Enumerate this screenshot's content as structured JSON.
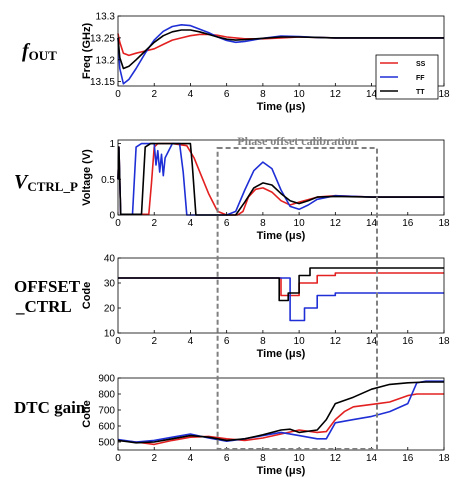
{
  "colors": {
    "SS": "#e32020",
    "FF": "#1f2fd6",
    "TT": "#000000",
    "callout": "#808080"
  },
  "callout": {
    "text": "Phase offset calibration",
    "x_range": [
      5.5,
      14.3
    ]
  },
  "chart_data": [
    {
      "type": "line",
      "row_label": {
        "main": "f",
        "sub": "OUT"
      },
      "xlabel": "Time (μs)",
      "ylabel": "Freq (GHz)",
      "xlim": [
        0,
        18
      ],
      "ylim": [
        13.14,
        13.3
      ],
      "xticks": [
        0,
        2,
        4,
        6,
        8,
        10,
        12,
        14,
        16,
        18
      ],
      "yticks": [
        13.15,
        13.2,
        13.25,
        13.3
      ],
      "ytick_labels": [
        "13.15",
        "13.2",
        "13.25",
        "13.3"
      ],
      "grid": false,
      "legend": "right",
      "series": [
        {
          "name": "SS",
          "color_key": "SS",
          "x": [
            0,
            0.1,
            0.3,
            0.6,
            1,
            1.5,
            2,
            2.5,
            3,
            3.5,
            4,
            4.5,
            5,
            5.5,
            6,
            6.5,
            7,
            8,
            9,
            10,
            11,
            12,
            14,
            16,
            18
          ],
          "y": [
            13.26,
            13.24,
            13.215,
            13.21,
            13.215,
            13.22,
            13.225,
            13.235,
            13.245,
            13.25,
            13.255,
            13.258,
            13.258,
            13.256,
            13.252,
            13.25,
            13.248,
            13.248,
            13.25,
            13.252,
            13.251,
            13.25,
            13.25,
            13.25,
            13.25
          ]
        },
        {
          "name": "FF",
          "color_key": "FF",
          "x": [
            0,
            0.1,
            0.3,
            0.6,
            1,
            1.5,
            2,
            2.5,
            3,
            3.5,
            4,
            4.5,
            5,
            5.5,
            6,
            6.5,
            7,
            8,
            9,
            10,
            11,
            12,
            14,
            16,
            18
          ],
          "y": [
            13.25,
            13.18,
            13.145,
            13.155,
            13.18,
            13.215,
            13.245,
            13.265,
            13.276,
            13.28,
            13.278,
            13.27,
            13.262,
            13.252,
            13.244,
            13.24,
            13.242,
            13.249,
            13.254,
            13.253,
            13.251,
            13.25,
            13.25,
            13.25,
            13.25
          ]
        },
        {
          "name": "TT",
          "color_key": "TT",
          "x": [
            0,
            0.1,
            0.3,
            0.6,
            1,
            1.5,
            2,
            2.5,
            3,
            3.5,
            4,
            4.5,
            5,
            5.5,
            6,
            6.5,
            7,
            8,
            9,
            10,
            11,
            12,
            14,
            16,
            18
          ],
          "y": [
            13.25,
            13.205,
            13.18,
            13.185,
            13.2,
            13.22,
            13.24,
            13.255,
            13.264,
            13.268,
            13.268,
            13.264,
            13.258,
            13.252,
            13.247,
            13.245,
            13.246,
            13.249,
            13.252,
            13.252,
            13.251,
            13.25,
            13.25,
            13.25,
            13.25
          ]
        }
      ]
    },
    {
      "type": "line",
      "row_label": {
        "main": "V",
        "sub": "CTRL_P"
      },
      "xlabel": "Time (μs)",
      "ylabel": "Voltage (V)",
      "xlim": [
        0,
        18
      ],
      "ylim": [
        0,
        1.05
      ],
      "xticks": [
        0,
        2,
        4,
        6,
        8,
        10,
        12,
        14,
        16,
        18
      ],
      "yticks": [
        0,
        0.5,
        1
      ],
      "ytick_labels": [
        "0",
        "0.5",
        "1"
      ],
      "grid": false,
      "series": [
        {
          "name": "SS",
          "color_key": "SS",
          "x": [
            0,
            0.05,
            0.15,
            1.7,
            1.85,
            2.0,
            2.2,
            3.0,
            3.8,
            4.2,
            4.6,
            5.0,
            5.5,
            6.0,
            6.3,
            6.6,
            6.9,
            7.2,
            7.6,
            8.0,
            8.5,
            9.0,
            9.5,
            10.0,
            11,
            12,
            14,
            16,
            18
          ],
          "y": [
            0.5,
            0.95,
            0.01,
            0.01,
            0.45,
            0.95,
            1.0,
            1.0,
            0.97,
            0.8,
            0.55,
            0.3,
            0.05,
            0.0,
            0.0,
            0.0,
            0.05,
            0.25,
            0.36,
            0.38,
            0.32,
            0.2,
            0.14,
            0.18,
            0.25,
            0.27,
            0.25,
            0.25,
            0.25
          ]
        },
        {
          "name": "FF",
          "color_key": "FF",
          "x": [
            0,
            0.05,
            0.15,
            0.8,
            1.0,
            1.3,
            2.0,
            2.1,
            2.2,
            2.3,
            2.4,
            2.5,
            2.6,
            3.0,
            3.4,
            3.6,
            3.8,
            6.0,
            6.5,
            7.0,
            7.5,
            8.0,
            8.5,
            9.0,
            9.5,
            10.0,
            10.5,
            11,
            12,
            14,
            16,
            18
          ],
          "y": [
            0.5,
            0.95,
            0.01,
            0.01,
            0.95,
            1.0,
            1.0,
            0.7,
            0.9,
            0.6,
            0.85,
            0.55,
            0.8,
            1.0,
            1.0,
            0.6,
            0.0,
            0.0,
            0.05,
            0.35,
            0.62,
            0.74,
            0.65,
            0.35,
            0.12,
            0.08,
            0.14,
            0.22,
            0.27,
            0.25,
            0.25,
            0.25
          ]
        },
        {
          "name": "TT",
          "color_key": "TT",
          "x": [
            0,
            0.05,
            0.15,
            1.3,
            1.5,
            1.8,
            3.0,
            4.0,
            4.1,
            4.3,
            6.5,
            7.0,
            7.5,
            8.0,
            8.5,
            9.0,
            9.5,
            10.0,
            10.5,
            11,
            12,
            14,
            16,
            18
          ],
          "y": [
            0.5,
            0.95,
            0.01,
            0.01,
            0.95,
            1.0,
            1.0,
            1.0,
            0.7,
            0.0,
            0.0,
            0.18,
            0.38,
            0.45,
            0.42,
            0.3,
            0.2,
            0.16,
            0.2,
            0.25,
            0.26,
            0.25,
            0.25,
            0.25
          ]
        }
      ]
    },
    {
      "type": "line",
      "row_label": {
        "line1": "OFFSET",
        "line2": "_CTRL"
      },
      "xlabel": "Time (μs)",
      "ylabel": "Code",
      "xlim": [
        0,
        18
      ],
      "ylim": [
        10,
        40
      ],
      "xticks": [
        0,
        2,
        4,
        6,
        8,
        10,
        12,
        14,
        16,
        18
      ],
      "yticks": [
        10,
        20,
        30,
        40
      ],
      "ytick_labels": [
        "10",
        "20",
        "30",
        "40"
      ],
      "grid": false,
      "step": true,
      "series": [
        {
          "name": "SS",
          "color_key": "SS",
          "x": [
            0,
            7.0,
            9.0,
            9.4,
            10.0,
            11.0,
            12.0,
            18
          ],
          "y": [
            32,
            32,
            25,
            25,
            30,
            33,
            34,
            34
          ]
        },
        {
          "name": "FF",
          "color_key": "FF",
          "x": [
            0,
            7.0,
            9.5,
            10.3,
            11.0,
            12.0,
            18
          ],
          "y": [
            32,
            32,
            15,
            20,
            25,
            26,
            26
          ]
        },
        {
          "name": "TT",
          "color_key": "TT",
          "x": [
            0,
            7.0,
            8.9,
            9.4,
            10.0,
            10.6,
            12.0,
            18
          ],
          "y": [
            32,
            32,
            23,
            26,
            33,
            36,
            36,
            36
          ]
        }
      ]
    },
    {
      "type": "line",
      "row_label": {
        "main": "DTC gain"
      },
      "xlabel": "Time (μs)",
      "ylabel": "Code",
      "xlim": [
        0,
        18
      ],
      "ylim": [
        450,
        900
      ],
      "xticks": [
        0,
        2,
        4,
        6,
        8,
        10,
        12,
        14,
        16,
        18
      ],
      "yticks": [
        500,
        600,
        700,
        800,
        900
      ],
      "ytick_labels": [
        "500",
        "600",
        "700",
        "800",
        "900"
      ],
      "grid": false,
      "series": [
        {
          "name": "SS",
          "color_key": "SS",
          "x": [
            0,
            1,
            2,
            3,
            4,
            5,
            6,
            7,
            8,
            9,
            10,
            11,
            11.5,
            12,
            12.5,
            13,
            14,
            15,
            16,
            16.5,
            17,
            18
          ],
          "y": [
            510,
            500,
            485,
            510,
            530,
            535,
            520,
            510,
            525,
            550,
            575,
            560,
            565,
            640,
            690,
            720,
            735,
            750,
            790,
            800,
            800,
            800
          ]
        },
        {
          "name": "FF",
          "color_key": "FF",
          "x": [
            0,
            1,
            2,
            3,
            4,
            5,
            6,
            7,
            8,
            9,
            10,
            11,
            11.5,
            12,
            13,
            14,
            15,
            16,
            16.5,
            17,
            18
          ],
          "y": [
            515,
            500,
            510,
            530,
            550,
            525,
            505,
            520,
            540,
            560,
            540,
            520,
            520,
            620,
            640,
            660,
            690,
            740,
            870,
            880,
            880
          ]
        },
        {
          "name": "TT",
          "color_key": "TT",
          "x": [
            0,
            1,
            2,
            3,
            4,
            5,
            6,
            7,
            8,
            9,
            9.5,
            10,
            11,
            11.5,
            12,
            13,
            14,
            15,
            16,
            17,
            18
          ],
          "y": [
            510,
            495,
            500,
            520,
            540,
            530,
            510,
            520,
            545,
            575,
            580,
            560,
            575,
            640,
            740,
            780,
            830,
            860,
            870,
            875,
            875
          ]
        }
      ]
    }
  ]
}
